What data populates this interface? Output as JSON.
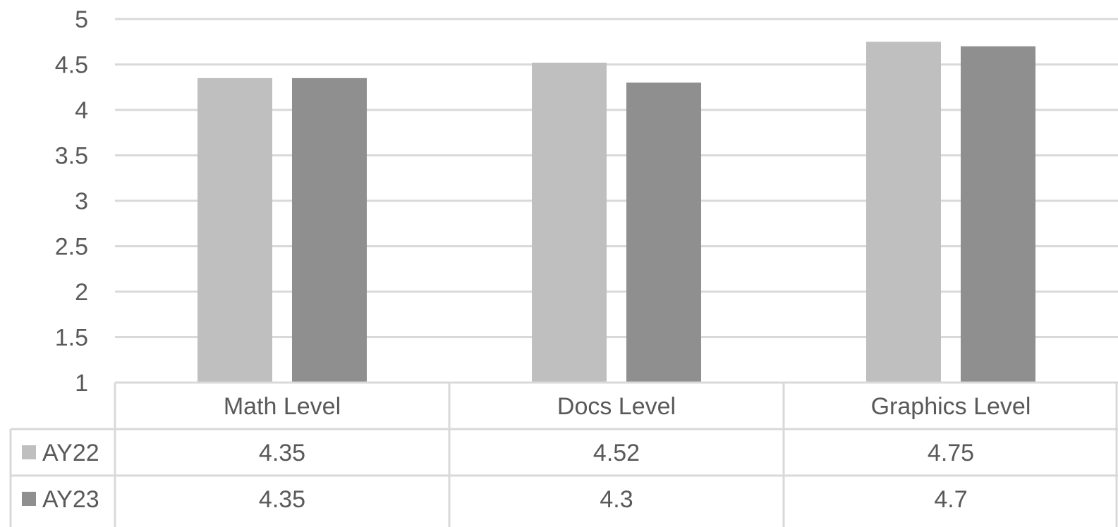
{
  "chart_data": {
    "type": "bar",
    "title": "",
    "xlabel": "",
    "ylabel": "",
    "ylim": [
      1,
      5
    ],
    "yticks": [
      "1",
      "1.5",
      "2",
      "2.5",
      "3",
      "3.5",
      "4",
      "4.5",
      "5"
    ],
    "categories": [
      "Math Level",
      "Docs Level",
      "Graphics Level"
    ],
    "series": [
      {
        "name": "AY22",
        "color": "#bfbfbf",
        "values": [
          4.35,
          4.52,
          4.75
        ],
        "labels": [
          "4.35",
          "4.52",
          "4.75"
        ]
      },
      {
        "name": "AY23",
        "color": "#8f8f8f",
        "values": [
          4.35,
          4.3,
          4.7
        ],
        "labels": [
          "4.35",
          "4.3",
          "4.7"
        ]
      }
    ],
    "grid": true,
    "legend": "data-table"
  }
}
